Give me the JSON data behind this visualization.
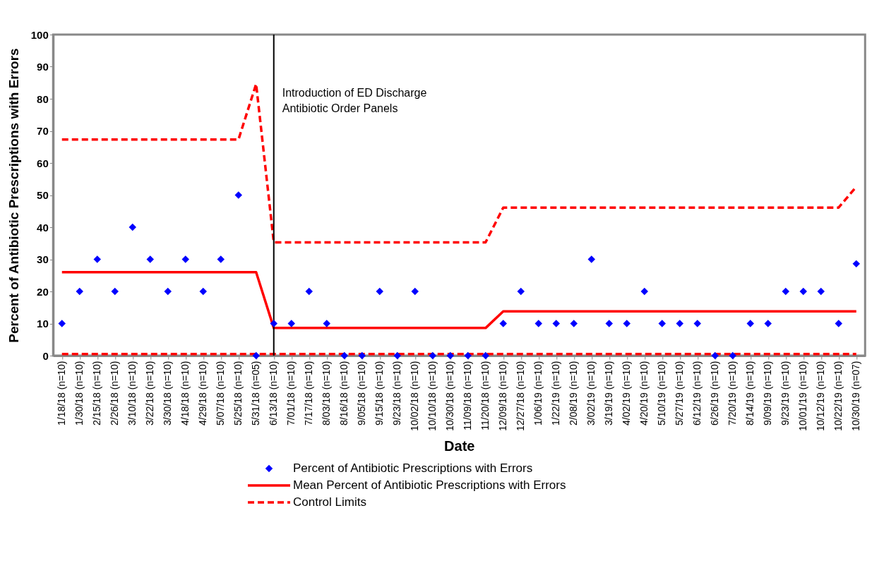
{
  "chart_data": {
    "type": "scatter",
    "xlabel": "Date",
    "ylabel": "Percent of Antibiotic Prescriptions with Errors",
    "categories": [
      "1/18/18 (n=10)",
      "1/30/18 (n=10)",
      "2/15/18 (n=10)",
      "2/26/18 (n=10)",
      "3/10/18 (n=10)",
      "3/22/18 (n=10)",
      "3/30/18 (n=10)",
      "4/18/18 (n=10)",
      "4/29/18 (n=10)",
      "5/07/18 (n=10)",
      "5/25/18 (n=10)",
      "5/31/18 (n=05)",
      "6/13/18 (n=10)",
      "7/01/18 (n=10)",
      "7/17/18 (n=10)",
      "8/03/18 (n=10)",
      "8/16/18 (n=10)",
      "9/05/18 (n=10)",
      "9/15/18 (n=10)",
      "9/23/18 (n=10)",
      "10/02/18 (n=10)",
      "10/10/18 (n=10)",
      "10/30/18 (n=10)",
      "11/09/18 (n=10)",
      "11/20/18 (n=10)",
      "12/09/18 (n=10)",
      "12/27/18 (n=10)",
      "1/06/19 (n=10)",
      "1/22/19 (n=10)",
      "2/08/19 (n=10)",
      "3/02/19 (n=10)",
      "3/19/19 (n=10)",
      "4/02/19 (n=10)",
      "4/20/19 (n=10)",
      "5/10/19 (n=10)",
      "5/27/19 (n=10)",
      "6/12/19 (n=10)",
      "6/26/19 (n=10)",
      "7/20/19 (n=10)",
      "8/14/19 (n=10)",
      "9/09/19 (n=10)",
      "9/23/19 (n=10)",
      "10/01/19 (n=10)",
      "10/12/19 (n=10)",
      "10/22/19 (n=10)",
      "10/30/19 (n=07)"
    ],
    "series": [
      {
        "name": "Percent of Antibiotic Prescriptions with Errors",
        "marker": "diamond",
        "color": "#0000ff",
        "values": [
          10,
          20,
          30,
          20,
          40,
          30,
          20,
          30,
          20,
          30,
          50,
          0,
          10,
          10,
          20,
          10,
          0,
          0,
          20,
          0,
          20,
          0,
          0,
          0,
          0,
          10,
          20,
          10,
          10,
          10,
          30,
          10,
          10,
          20,
          10,
          10,
          10,
          0,
          0,
          10,
          10,
          20,
          20,
          20,
          10,
          28.6
        ]
      },
      {
        "name": "Mean Percent of Antibiotic Prescriptions with Errors",
        "type": "line",
        "line_style": "solid",
        "color": "#ff0000",
        "values": [
          26,
          26,
          26,
          26,
          26,
          26,
          26,
          26,
          26,
          26,
          26,
          26,
          8.6,
          8.6,
          8.6,
          8.6,
          8.6,
          8.6,
          8.6,
          8.6,
          8.6,
          8.6,
          8.6,
          8.6,
          8.6,
          13.8,
          13.8,
          13.8,
          13.8,
          13.8,
          13.8,
          13.8,
          13.8,
          13.8,
          13.8,
          13.8,
          13.8,
          13.8,
          13.8,
          13.8,
          13.8,
          13.8,
          13.8,
          13.8,
          13.8,
          13.8
        ]
      },
      {
        "name": "Control Limits",
        "type": "line",
        "line_style": "dashed",
        "color": "#ff0000",
        "values": [
          67.3,
          67.3,
          67.3,
          67.3,
          67.3,
          67.3,
          67.3,
          67.3,
          67.3,
          67.3,
          67.3,
          84.6,
          35.3,
          35.3,
          35.3,
          35.3,
          35.3,
          35.3,
          35.3,
          35.3,
          35.3,
          35.3,
          35.3,
          35.3,
          35.3,
          46.1,
          46.1,
          46.1,
          46.1,
          46.1,
          46.1,
          46.1,
          46.1,
          46.1,
          46.1,
          46.1,
          46.1,
          46.1,
          46.1,
          46.1,
          46.1,
          46.1,
          46.1,
          46.1,
          46.1,
          52.6
        ]
      },
      {
        "type": "line",
        "line_style": "dashed",
        "color": "#ff0000",
        "values": [
          0.5,
          0.5,
          0.5,
          0.5,
          0.5,
          0.5,
          0.5,
          0.5,
          0.5,
          0.5,
          0.5,
          0.5,
          0.5,
          0.5,
          0.5,
          0.5,
          0.5,
          0.5,
          0.5,
          0.5,
          0.5,
          0.5,
          0.5,
          0.5,
          0.5,
          0.5,
          0.5,
          0.5,
          0.5,
          0.5,
          0.5,
          0.5,
          0.5,
          0.5,
          0.5,
          0.5,
          0.5,
          0.5,
          0.5,
          0.5,
          0.5,
          0.5,
          0.5,
          0.5,
          0.5,
          0.5
        ]
      }
    ],
    "ref_lines": [
      {
        "axis": "x",
        "value": "6/13/18 (n=10)",
        "label": "Introduction of ED Discharge\nAntibiotic Order Panels",
        "color": "#000000"
      }
    ],
    "ylim": [
      0,
      100
    ],
    "yticks": [
      0,
      10,
      20,
      30,
      40,
      50,
      60,
      70,
      80,
      90,
      100
    ],
    "grid": false,
    "legend": "bottom"
  }
}
